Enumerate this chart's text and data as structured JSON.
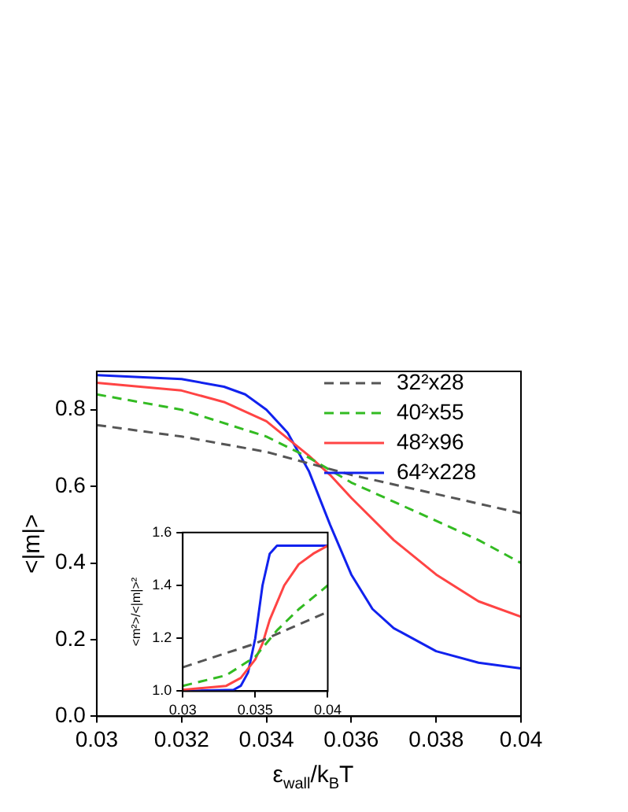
{
  "chart_data": [
    {
      "type": "line",
      "xlabel": "ε$_{wall}$/k$_{B}$T",
      "ylabel": "<|m|>",
      "xlim": [
        0.03,
        0.04
      ],
      "xticks": [
        0.03,
        0.032,
        0.034,
        0.036,
        0.038,
        0.04
      ],
      "ylim": [
        0,
        0.9
      ],
      "yticks": [
        {
          "value": 0,
          "label": "0.0"
        },
        0.2,
        0.4,
        0.6,
        0.8
      ],
      "legend": "top right",
      "grid": false,
      "marker": "none",
      "series": [
        {
          "name": "32²x28",
          "color": "#555555",
          "line_style": "dashed",
          "x": [
            0.03,
            0.032,
            0.034,
            0.035,
            0.036,
            0.038,
            0.04
          ],
          "values": [
            0.76,
            0.73,
            0.69,
            0.66,
            0.63,
            0.58,
            0.53
          ]
        },
        {
          "name": "40²x55",
          "color": "#33bb22",
          "line_style": "dashed",
          "x": [
            0.03,
            0.032,
            0.034,
            0.035,
            0.036,
            0.037,
            0.038,
            0.039,
            0.04
          ],
          "values": [
            0.84,
            0.8,
            0.73,
            0.675,
            0.61,
            0.56,
            0.51,
            0.46,
            0.4
          ]
        },
        {
          "name": "48²x96",
          "color": "#ff4444",
          "line_style": "solid",
          "x": [
            0.03,
            0.032,
            0.033,
            0.034,
            0.035,
            0.0355,
            0.036,
            0.037,
            0.038,
            0.039,
            0.04
          ],
          "values": [
            0.87,
            0.85,
            0.82,
            0.77,
            0.68,
            0.63,
            0.57,
            0.46,
            0.37,
            0.3,
            0.26
          ]
        },
        {
          "name": "64²x228",
          "color": "#1122ee",
          "line_style": "solid",
          "x": [
            0.03,
            0.032,
            0.033,
            0.0335,
            0.034,
            0.0345,
            0.035,
            0.0355,
            0.036,
            0.0365,
            0.037,
            0.038,
            0.039,
            0.04
          ],
          "values": [
            0.89,
            0.88,
            0.86,
            0.84,
            0.8,
            0.74,
            0.64,
            0.5,
            0.37,
            0.28,
            0.23,
            0.17,
            0.14,
            0.125
          ]
        }
      ]
    },
    {
      "type": "line",
      "ylabel": "<m²>/<|m|>²",
      "xlim": [
        0.03,
        0.04
      ],
      "xticks": [
        0.03,
        0.035,
        0.04
      ],
      "ylim": [
        1.0,
        1.6
      ],
      "yticks": [
        {
          "value": 1.0,
          "label": "1.0"
        },
        1.2,
        1.4,
        1.6
      ],
      "grid": false,
      "marker": "none",
      "series": [
        {
          "color": "#555555",
          "line_style": "dashed",
          "x": [
            0.03,
            0.035,
            0.04
          ],
          "values": [
            1.09,
            1.18,
            1.3
          ]
        },
        {
          "color": "#33bb22",
          "line_style": "dashed",
          "x": [
            0.03,
            0.033,
            0.035,
            0.0365,
            0.038,
            0.04
          ],
          "values": [
            1.02,
            1.06,
            1.13,
            1.23,
            1.31,
            1.4
          ]
        },
        {
          "color": "#ff4444",
          "line_style": "solid",
          "x": [
            0.03,
            0.033,
            0.034,
            0.035,
            0.0355,
            0.036,
            0.037,
            0.038,
            0.039,
            0.04
          ],
          "values": [
            1.005,
            1.02,
            1.05,
            1.12,
            1.18,
            1.27,
            1.4,
            1.48,
            1.52,
            1.55
          ]
        },
        {
          "color": "#1122ee",
          "line_style": "solid",
          "x": [
            0.03,
            0.0335,
            0.034,
            0.0345,
            0.035,
            0.0355,
            0.036,
            0.0365,
            0.04
          ],
          "values": [
            1.0,
            1.005,
            1.02,
            1.07,
            1.2,
            1.4,
            1.52,
            1.55,
            1.55
          ]
        }
      ]
    }
  ]
}
